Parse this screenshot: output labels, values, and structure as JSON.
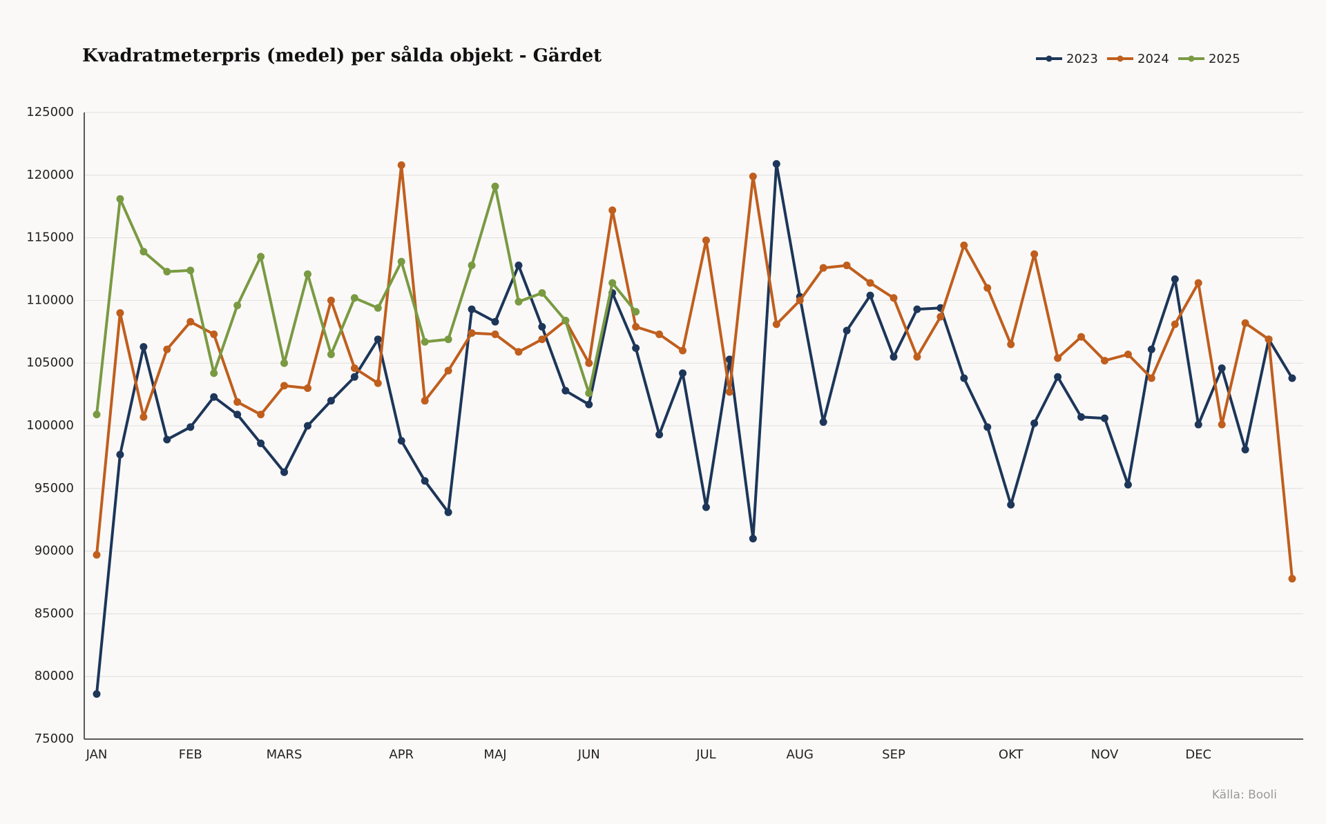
{
  "chart_data": {
    "type": "line",
    "title": "Kvadratmeterpris (medel) per sålda objekt - Gärdet",
    "source": "Källa: Booli",
    "categories": [
      "JAN",
      null,
      null,
      null,
      "FEB",
      null,
      null,
      null,
      "MARS",
      null,
      null,
      null,
      null,
      "APR",
      null,
      null,
      null,
      "MAJ",
      null,
      null,
      null,
      "JUN",
      null,
      null,
      null,
      null,
      "JUL",
      null,
      null,
      null,
      "AUG",
      null,
      null,
      null,
      "SEP",
      null,
      null,
      null,
      null,
      "OKT",
      null,
      null,
      null,
      "NOV",
      null,
      null,
      null,
      "DEC",
      null,
      null,
      null,
      null
    ],
    "series": [
      {
        "name": "2023",
        "color": "#1d3659",
        "values": [
          78600,
          97700,
          106300,
          98900,
          99900,
          102300,
          100900,
          98600,
          96300,
          100000,
          102000,
          103900,
          106900,
          98800,
          95600,
          93100,
          109300,
          108300,
          112800,
          107900,
          102800,
          101700,
          110600,
          106200,
          99300,
          104200,
          93500,
          105300,
          91000,
          120900,
          110300,
          100300,
          107600,
          110400,
          105500,
          109300,
          109400,
          103800,
          99900,
          93700,
          100200,
          103900,
          100700,
          100600,
          95300,
          106100,
          111700,
          100100,
          104600,
          98100,
          106900,
          103800
        ]
      },
      {
        "name": "2024",
        "color": "#c05e1d",
        "values": [
          89700,
          109000,
          100700,
          106100,
          108300,
          107300,
          101900,
          100900,
          103200,
          103000,
          110000,
          104600,
          103400,
          120800,
          102000,
          104400,
          107400,
          107300,
          105900,
          106900,
          108400,
          105000,
          117200,
          107900,
          107300,
          106000,
          114800,
          102700,
          119900,
          108100,
          110000,
          112600,
          112800,
          111400,
          110200,
          105500,
          108700,
          114400,
          111000,
          106500,
          113700,
          105400,
          107100,
          105200,
          105700,
          103800,
          108100,
          111400,
          100100,
          108200,
          106900,
          87800
        ]
      },
      {
        "name": "2025",
        "color": "#7a9a42",
        "values": [
          100900,
          118100,
          113900,
          112300,
          112400,
          104200,
          109600,
          113500,
          105000,
          112100,
          105700,
          110200,
          109400,
          113100,
          106700,
          106900,
          112800,
          119100,
          109900,
          110600,
          108400,
          102600,
          111400,
          109100,
          null,
          null,
          null,
          null,
          null,
          null,
          null,
          null,
          null,
          null,
          null,
          null,
          null,
          null,
          null,
          null,
          null,
          null,
          null,
          null,
          null,
          null,
          null,
          null,
          null,
          null,
          null,
          null
        ]
      }
    ],
    "ylim": [
      75000,
      125000
    ],
    "yticks": [
      75000,
      80000,
      85000,
      90000,
      95000,
      100000,
      105000,
      110000,
      115000,
      120000,
      125000
    ],
    "grid": true,
    "legend": "upper right"
  }
}
